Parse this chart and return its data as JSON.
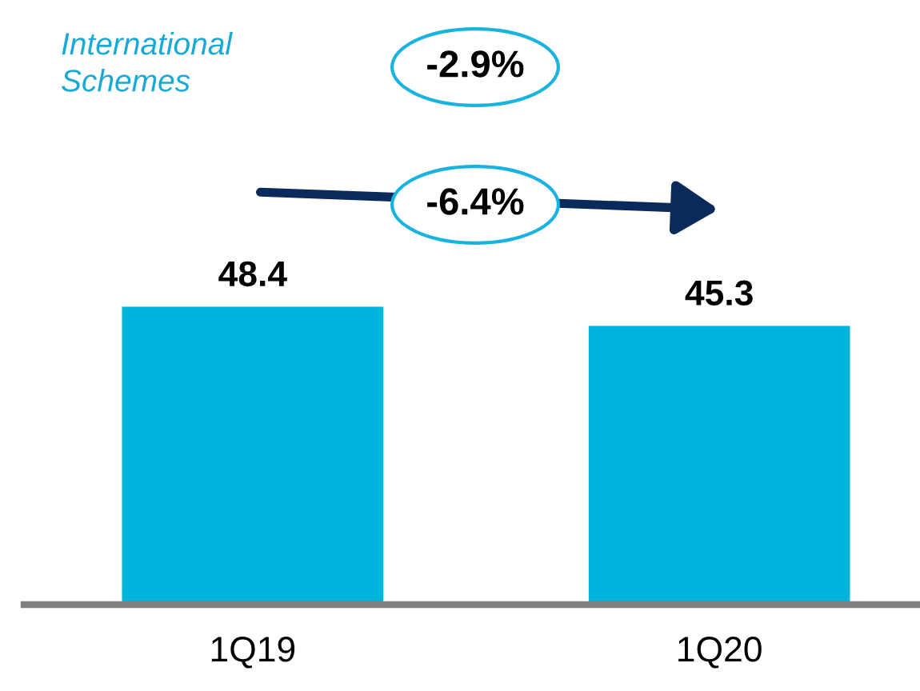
{
  "chart_data": {
    "type": "bar",
    "title": "International\nSchemes",
    "categories": [
      "1Q19",
      "1Q20"
    ],
    "values": [
      48.4,
      45.3
    ],
    "color": "#00b5dd",
    "data_labels": true,
    "grid": false,
    "legend": false,
    "annotations": [
      "-2.9%",
      "-6.4%"
    ]
  }
}
